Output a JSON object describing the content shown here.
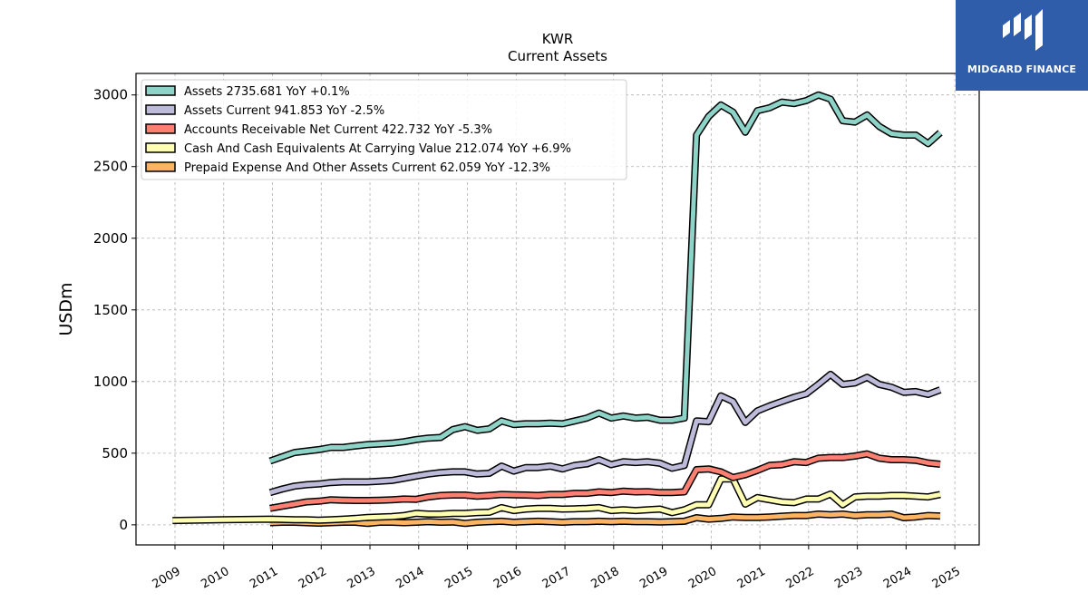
{
  "brand": {
    "name": "MIDGARD FINANCE",
    "color": "#2f5daa",
    "icon": "midgard-logo-icon"
  },
  "chart_data": {
    "type": "line",
    "title": "KWR",
    "subtitle": "Current  Assets",
    "xlabel": "",
    "ylabel": "USDm",
    "xlim": [
      2008.2,
      2025.5
    ],
    "ylim": [
      -140,
      3150
    ],
    "xticks": [
      2009,
      2010,
      2011,
      2012,
      2013,
      2014,
      2015,
      2016,
      2017,
      2018,
      2019,
      2020,
      2021,
      2022,
      2023,
      2024,
      2025
    ],
    "yticks": [
      0,
      500,
      1000,
      1500,
      2000,
      2500,
      3000
    ],
    "grid": true,
    "legend_position": "top-left",
    "series": [
      {
        "name": "Assets",
        "legend_label": "Assets  2735.681 YoY +0.1%",
        "color": "#8dd3c7",
        "x": [
          2010.95,
          2011.2,
          2011.45,
          2011.7,
          2011.95,
          2012.2,
          2012.45,
          2012.7,
          2012.95,
          2013.2,
          2013.45,
          2013.7,
          2013.95,
          2014.2,
          2014.45,
          2014.7,
          2014.95,
          2015.2,
          2015.45,
          2015.7,
          2015.95,
          2016.2,
          2016.45,
          2016.7,
          2016.95,
          2017.2,
          2017.45,
          2017.7,
          2017.95,
          2018.2,
          2018.45,
          2018.7,
          2018.95,
          2019.2,
          2019.45,
          2019.7,
          2019.95,
          2020.2,
          2020.45,
          2020.7,
          2020.95,
          2021.2,
          2021.45,
          2021.7,
          2021.95,
          2022.2,
          2022.45,
          2022.7,
          2022.95,
          2023.2,
          2023.45,
          2023.7,
          2023.95,
          2024.2,
          2024.45,
          2024.7
        ],
        "y": [
          445,
          475,
          505,
          515,
          525,
          540,
          540,
          550,
          560,
          565,
          570,
          580,
          595,
          605,
          610,
          665,
          685,
          660,
          670,
          725,
          700,
          705,
          705,
          710,
          705,
          725,
          745,
          780,
          745,
          760,
          745,
          750,
          730,
          730,
          745,
          2720,
          2850,
          2930,
          2880,
          2740,
          2890,
          2910,
          2950,
          2940,
          2960,
          3000,
          2970,
          2820,
          2810,
          2860,
          2780,
          2730,
          2720,
          2720,
          2660,
          2736
        ]
      },
      {
        "name": "Assets Current",
        "legend_label": "Assets Current  941.853 YoY -2.5%",
        "color": "#bebada",
        "x": [
          2010.95,
          2011.2,
          2011.45,
          2011.7,
          2011.95,
          2012.2,
          2012.45,
          2012.7,
          2012.95,
          2013.2,
          2013.45,
          2013.7,
          2013.95,
          2014.2,
          2014.45,
          2014.7,
          2014.95,
          2015.2,
          2015.45,
          2015.7,
          2015.95,
          2016.2,
          2016.45,
          2016.7,
          2016.95,
          2017.2,
          2017.45,
          2017.7,
          2017.95,
          2018.2,
          2018.45,
          2018.7,
          2018.95,
          2019.2,
          2019.45,
          2019.7,
          2019.95,
          2020.2,
          2020.45,
          2020.7,
          2020.95,
          2021.2,
          2021.45,
          2021.7,
          2021.95,
          2022.2,
          2022.45,
          2022.7,
          2022.95,
          2023.2,
          2023.45,
          2023.7,
          2023.95,
          2024.2,
          2024.45,
          2024.7
        ],
        "y": [
          225,
          250,
          270,
          280,
          285,
          295,
          300,
          300,
          300,
          305,
          310,
          325,
          340,
          355,
          365,
          370,
          370,
          355,
          360,
          410,
          375,
          400,
          400,
          410,
          390,
          415,
          425,
          455,
          420,
          440,
          435,
          440,
          430,
          395,
          415,
          725,
          720,
          900,
          860,
          715,
          795,
          830,
          860,
          890,
          915,
          980,
          1050,
          980,
          990,
          1030,
          980,
          960,
          925,
          930,
          910,
          942
        ]
      },
      {
        "name": "Accounts Receivable Net Current",
        "legend_label": "Accounts Receivable Net Current  422.732 YoY -5.3%",
        "color": "#fb8072",
        "x": [
          2010.95,
          2011.2,
          2011.45,
          2011.7,
          2011.95,
          2012.2,
          2012.45,
          2012.7,
          2012.95,
          2013.2,
          2013.45,
          2013.7,
          2013.95,
          2014.2,
          2014.45,
          2014.7,
          2014.95,
          2015.2,
          2015.45,
          2015.7,
          2015.95,
          2016.2,
          2016.45,
          2016.7,
          2016.95,
          2017.2,
          2017.45,
          2017.7,
          2017.95,
          2018.2,
          2018.45,
          2018.7,
          2018.95,
          2019.2,
          2019.45,
          2019.7,
          2019.95,
          2020.2,
          2020.45,
          2020.7,
          2020.95,
          2021.2,
          2021.45,
          2021.7,
          2021.95,
          2022.2,
          2022.45,
          2022.7,
          2022.95,
          2023.2,
          2023.45,
          2023.7,
          2023.95,
          2024.2,
          2024.45,
          2024.7
        ],
        "y": [
          115,
          130,
          145,
          160,
          165,
          175,
          172,
          170,
          170,
          172,
          175,
          180,
          178,
          195,
          205,
          208,
          208,
          200,
          205,
          212,
          210,
          208,
          205,
          212,
          212,
          220,
          220,
          230,
          225,
          235,
          230,
          232,
          225,
          225,
          230,
          385,
          390,
          370,
          330,
          350,
          380,
          415,
          420,
          440,
          435,
          465,
          470,
          470,
          480,
          495,
          465,
          455,
          455,
          450,
          432,
          423
        ]
      },
      {
        "name": "Cash And Cash Equivalents At Carrying Value",
        "legend_label": "Cash And Cash Equivalents At Carrying Value  212.074 YoY +6.9%",
        "color": "#ffffb3",
        "x": [
          2008.95,
          2009.95,
          2010.95,
          2011.2,
          2011.45,
          2011.7,
          2011.95,
          2012.2,
          2012.45,
          2012.7,
          2012.95,
          2013.2,
          2013.45,
          2013.7,
          2013.95,
          2014.2,
          2014.45,
          2014.7,
          2014.95,
          2015.2,
          2015.45,
          2015.7,
          2015.95,
          2016.2,
          2016.45,
          2016.7,
          2016.95,
          2017.2,
          2017.45,
          2017.7,
          2017.95,
          2018.2,
          2018.45,
          2018.7,
          2018.95,
          2019.2,
          2019.45,
          2019.7,
          2019.95,
          2020.2,
          2020.45,
          2020.7,
          2020.95,
          2021.2,
          2021.45,
          2021.7,
          2021.95,
          2022.2,
          2022.45,
          2022.7,
          2022.95,
          2023.2,
          2023.45,
          2023.7,
          2023.95,
          2024.2,
          2024.45,
          2024.7
        ],
        "y": [
          30,
          35,
          40,
          38,
          35,
          35,
          32,
          35,
          40,
          45,
          52,
          55,
          58,
          65,
          80,
          75,
          75,
          80,
          80,
          85,
          88,
          120,
          100,
          110,
          115,
          115,
          110,
          112,
          115,
          120,
          100,
          105,
          100,
          105,
          110,
          85,
          105,
          140,
          140,
          320,
          320,
          145,
          190,
          175,
          160,
          155,
          180,
          180,
          215,
          140,
          195,
          200,
          200,
          205,
          205,
          200,
          195,
          212
        ]
      },
      {
        "name": "Prepaid Expense And Other Assets Current",
        "legend_label": "Prepaid Expense And Other Assets Current  62.059 YoY -12.3%",
        "color": "#fdb462",
        "x": [
          2010.95,
          2011.2,
          2011.45,
          2011.7,
          2011.95,
          2012.2,
          2012.45,
          2012.7,
          2012.95,
          2013.2,
          2013.45,
          2013.7,
          2013.95,
          2014.2,
          2014.45,
          2014.7,
          2014.95,
          2015.2,
          2015.45,
          2015.7,
          2015.95,
          2016.2,
          2016.45,
          2016.7,
          2016.95,
          2017.2,
          2017.45,
          2017.7,
          2017.95,
          2018.2,
          2018.45,
          2018.7,
          2018.95,
          2019.2,
          2019.45,
          2019.7,
          2019.95,
          2020.2,
          2020.45,
          2020.7,
          2020.95,
          2021.2,
          2021.45,
          2021.7,
          2021.95,
          2022.2,
          2022.45,
          2022.7,
          2022.95,
          2023.2,
          2023.45,
          2023.7,
          2023.95,
          2024.2,
          2024.45,
          2024.7
        ],
        "y": [
          15,
          18,
          18,
          15,
          12,
          15,
          18,
          18,
          10,
          18,
          18,
          15,
          18,
          22,
          18,
          20,
          10,
          18,
          22,
          25,
          18,
          22,
          25,
          22,
          18,
          22,
          22,
          25,
          22,
          25,
          22,
          22,
          20,
          22,
          25,
          50,
          40,
          45,
          55,
          52,
          52,
          55,
          60,
          65,
          65,
          75,
          70,
          75,
          65,
          70,
          70,
          75,
          50,
          55,
          65,
          62
        ]
      }
    ]
  }
}
